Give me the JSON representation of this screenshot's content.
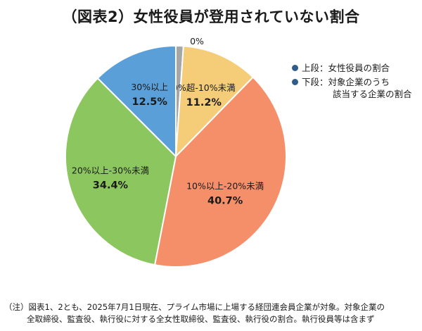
{
  "title": "（図表2）女性役員が登用されていない割合",
  "chart_data": {
    "type": "pie",
    "title": "（図表2）女性役員が登用されていない割合",
    "slices": [
      {
        "label": "0%",
        "value": 1.1,
        "value_label": "1.1%",
        "color": "#a6a6a6"
      },
      {
        "label": "0%超-10%未満",
        "value": 11.2,
        "value_label": "11.2%",
        "color": "#f5cd78"
      },
      {
        "label": "10%以上-20%未満",
        "value": 40.7,
        "value_label": "40.7%",
        "color": "#f58f6a"
      },
      {
        "label": "20%以上-30%未満",
        "value": 34.4,
        "value_label": "34.4%",
        "color": "#8cc65e"
      },
      {
        "label": "30%以上",
        "value": 12.5,
        "value_label": "12.5%",
        "color": "#5a9fd8"
      }
    ],
    "start": "12 o'clock, clockwise"
  },
  "legend": {
    "upper": "上段：女性役員の割合",
    "lower_1": "下段：対象企業のうち",
    "lower_2": "該当する企業の割合"
  },
  "note": {
    "line1": "（注）図表1、2とも、2025年7月1日現在、プライム市場に上場する経団連会員企業が対象。対象企業の",
    "line2": "全取締役、監査役、執行役に対する全女性取締役、監査役、執行役の割合。執行役員等は含まず"
  }
}
